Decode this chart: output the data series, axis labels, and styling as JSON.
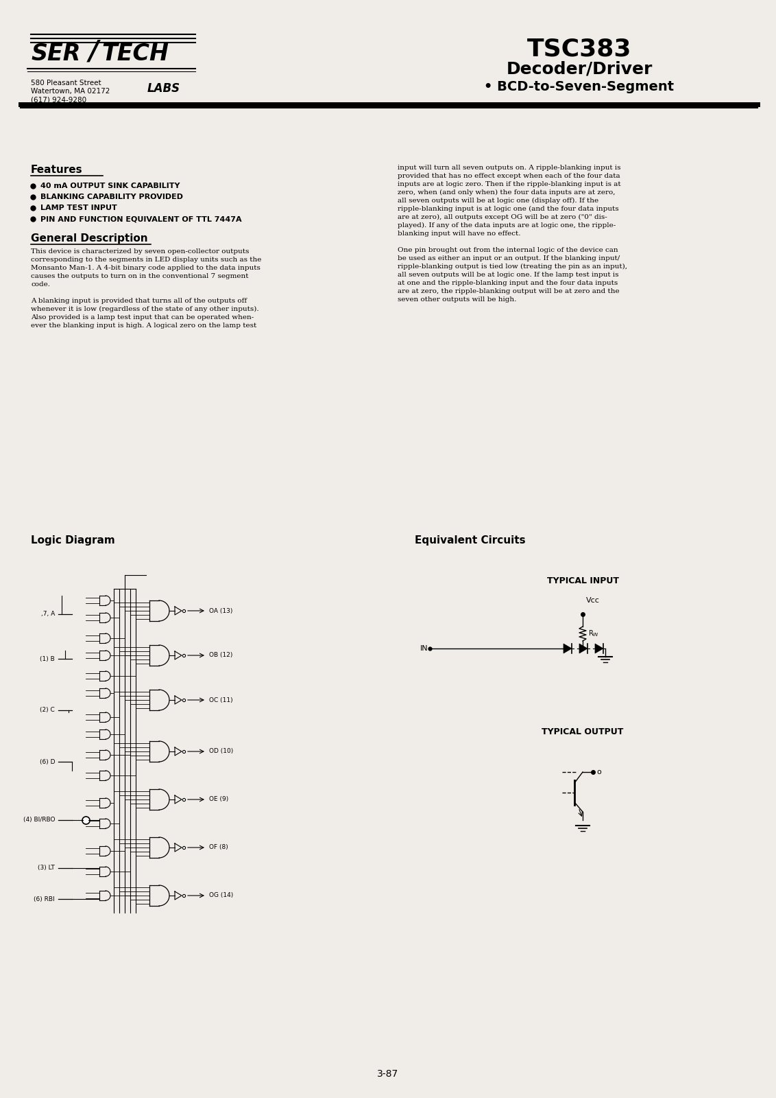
{
  "bg_color": "#f0ede8",
  "title_chip": "TSC383",
  "title_line2": "Decoder/Driver",
  "title_line3": "• BCD-to-Seven-Segment",
  "company_addr1": "580 Pleasant Street",
  "company_addr2": "Watertown, MA 02172",
  "company_addr3": "(617) 924-9280",
  "company_sub": "LABS",
  "features_title": "Features",
  "features": [
    "40 mA OUTPUT SINK CAPABILITY",
    "BLANKING CAPABILITY PROVIDED",
    "LAMP TEST INPUT",
    "PIN AND FUNCTION EQUIVALENT OF TTL 7447A"
  ],
  "gen_desc_title": "General Description",
  "gen_desc_lines": [
    "This device is characterized by seven open-collector outputs",
    "corresponding to the segments in LED display units such as the",
    "Monsanto Man-1. A 4-bit binary code applied to the data inputs",
    "causes the outputs to turn on in the conventional 7 segment",
    "code.",
    "",
    "A blanking input is provided that turns all of the outputs off",
    "whenever it is low (regardless of the state of any other inputs).",
    "Also provided is a lamp test input that can be operated when-",
    "ever the blanking input is high. A logical zero on the lamp test"
  ],
  "right_col_lines": [
    "input will turn all seven outputs on. A ripple-blanking input is",
    "provided that has no effect except when each of the four data",
    "inputs are at logic zero. Then if the ripple-blanking input is at",
    "zero, when (and only when) the four data inputs are at zero,",
    "all seven outputs will be at logic one (display off). If the",
    "ripple-blanking input is at logic one (and the four data inputs",
    "are at zero), all outputs except OG will be at zero (\"0\" dis-",
    "played). If any of the data inputs are at logic one, the ripple-",
    "blanking input will have no effect.",
    "",
    "One pin brought out from the internal logic of the device can",
    "be used as either an input or an output. If the blanking input/",
    "ripple-blanking output is tied low (treating the pin as an input),",
    "all seven outputs will be at logic one. If the lamp test input is",
    "at one and the ripple-blanking input and the four data inputs",
    "are at zero, the ripple-blanking output will be at zero and the",
    "seven other outputs will be high."
  ],
  "logic_diagram_title": "Logic Diagram",
  "equiv_circuits_title": "Equivalent Circuits",
  "typical_input_title": "TYPICAL INPUT",
  "typical_output_title": "TYPICAL OUTPUT",
  "input_labels": [
    ",7, A",
    "(1) B",
    "(2) C",
    "(6) D",
    "(4) BI/RBO",
    "(3) LT",
    "(6) RBI"
  ],
  "output_labels": [
    "OA (13)",
    "OB (12)",
    "OC (11)",
    "OD (10)",
    "OE (9)",
    "OF (8)",
    "OG (14)"
  ],
  "page_number": "3-87"
}
